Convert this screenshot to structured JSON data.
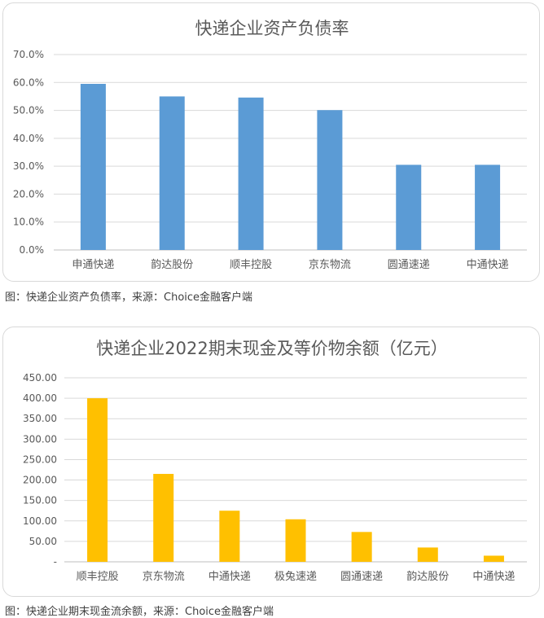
{
  "chart_data": [
    {
      "type": "bar",
      "title": "快递企业资产负债率",
      "categories": [
        "申通快递",
        "韵达股份",
        "顺丰控股",
        "京东物流",
        "圆通速递",
        "中通快递"
      ],
      "values": [
        59.5,
        55.0,
        54.6,
        50.1,
        30.5,
        30.5
      ],
      "ylim": [
        0,
        70
      ],
      "ytick_labels": [
        "0.0%",
        "10.0%",
        "20.0%",
        "30.0%",
        "40.0%",
        "50.0%",
        "60.0%",
        "70.0%"
      ],
      "color": "#5b9bd5",
      "grid": true
    },
    {
      "type": "bar",
      "title": "快递企业2022期末现金及等价物余额（亿元）",
      "categories": [
        "顺丰控股",
        "京东物流",
        "中通快递",
        "极兔速递",
        "圆通速递",
        "韵达股份",
        "中通快递"
      ],
      "values": [
        400,
        215,
        125,
        104,
        73,
        35,
        15
      ],
      "ylim": [
        0,
        450
      ],
      "ytick_labels": [
        "-",
        "50.00",
        "100.00",
        "150.00",
        "200.00",
        "250.00",
        "300.00",
        "350.00",
        "400.00",
        "450.00"
      ],
      "color": "#ffc000",
      "grid": true
    }
  ],
  "captions": {
    "chart1": "图：快递企业资产负债率，来源：Choice金融客户端",
    "chart2": "图：快递企业期末现金流余额，来源：Choice金融客户端"
  }
}
